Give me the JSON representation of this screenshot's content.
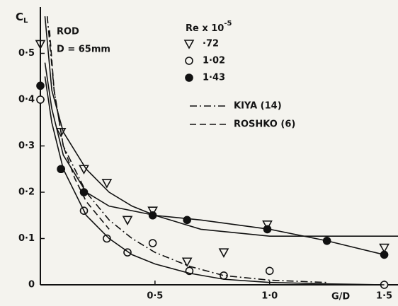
{
  "chart_data": {
    "type": "scatter",
    "y_label": {
      "symbol": "C",
      "subscript": "L"
    },
    "x_label": "G/D",
    "annotations": [
      "ROD",
      "D = 65mm"
    ],
    "legend_title": {
      "text": "Re x 10",
      "exponent": "-5"
    },
    "xlim": [
      0,
      1.56
    ],
    "ylim": [
      0,
      0.6
    ],
    "xticks": [
      {
        "value": 0.5,
        "label": "0·5"
      },
      {
        "value": 1.0,
        "label": "1·0"
      },
      {
        "value": 1.5,
        "label": "1·5"
      }
    ],
    "yticks": [
      0,
      {
        "value": 0.1,
        "label": "0·1"
      },
      {
        "value": 0.2,
        "label": "0·2"
      },
      {
        "value": 0.3,
        "label": "0·3"
      },
      {
        "value": 0.4,
        "label": "0·4"
      },
      {
        "value": 0.5,
        "label": "0·5"
      }
    ],
    "series": [
      {
        "name": "·72",
        "mode": "markers",
        "marker": "triangle",
        "color": "#111111",
        "x": [
          0,
          0.09,
          0.19,
          0.29,
          0.38,
          0.49,
          0.64,
          0.8,
          0.99,
          1.5
        ],
        "values": [
          0.52,
          0.33,
          0.25,
          0.22,
          0.14,
          0.16,
          0.05,
          0.07,
          0.13,
          0.08
        ]
      },
      {
        "name": "1·02",
        "mode": "markers",
        "marker": "circle",
        "color": "#111111",
        "x": [
          0,
          0.09,
          0.19,
          0.29,
          0.38,
          0.49,
          0.65,
          0.8,
          1.0,
          1.5
        ],
        "values": [
          0.4,
          0.25,
          0.16,
          0.1,
          0.07,
          0.09,
          0.03,
          0.02,
          0.03,
          0.0
        ]
      },
      {
        "name": "1·43",
        "mode": "markers",
        "marker": "filled-circle",
        "color": "#111111",
        "x": [
          0,
          0.09,
          0.19,
          0.49,
          0.64,
          0.99,
          1.25,
          1.5
        ],
        "values": [
          0.43,
          0.25,
          0.2,
          0.15,
          0.14,
          0.12,
          0.095,
          0.065
        ]
      },
      {
        "name": "KIYA (14)",
        "mode": "line",
        "style": "dash-dot",
        "color": "#111111",
        "x": [
          0.03,
          0.06,
          0.1,
          0.2,
          0.3,
          0.4,
          0.5,
          0.65,
          0.8,
          1.0,
          1.25
        ],
        "values": [
          0.58,
          0.42,
          0.3,
          0.2,
          0.14,
          0.1,
          0.07,
          0.04,
          0.02,
          0.01,
          0.005
        ]
      },
      {
        "name": "ROSHKO (6)",
        "mode": "line",
        "style": "dashed",
        "color": "#111111",
        "x": [
          0.04,
          0.06,
          0.1,
          0.15,
          0.2,
          0.3
        ],
        "values": [
          0.55,
          0.42,
          0.3,
          0.23,
          0.18,
          0.12
        ]
      },
      {
        "mode": "line",
        "style": "solid",
        "color": "#111111",
        "x": [
          0.02,
          0.05,
          0.1,
          0.2,
          0.3,
          0.4,
          0.5,
          0.7,
          1.0,
          1.5,
          1.56
        ],
        "values": [
          0.58,
          0.42,
          0.33,
          0.25,
          0.2,
          0.17,
          0.15,
          0.12,
          0.105,
          0.105,
          0.105
        ]
      },
      {
        "mode": "line",
        "style": "solid",
        "color": "#111111",
        "x": [
          0.02,
          0.05,
          0.1,
          0.2,
          0.3,
          0.5,
          0.7,
          1.0,
          1.25,
          1.5
        ],
        "values": [
          0.48,
          0.38,
          0.28,
          0.2,
          0.17,
          0.15,
          0.14,
          0.12,
          0.095,
          0.065
        ]
      },
      {
        "mode": "line",
        "style": "solid",
        "color": "#111111",
        "x": [
          0.02,
          0.05,
          0.1,
          0.2,
          0.3,
          0.4,
          0.5,
          0.65,
          0.8,
          1.0,
          1.25,
          1.5
        ],
        "values": [
          0.45,
          0.35,
          0.25,
          0.15,
          0.1,
          0.065,
          0.045,
          0.025,
          0.012,
          0.005,
          0.002,
          0.0
        ]
      }
    ]
  }
}
